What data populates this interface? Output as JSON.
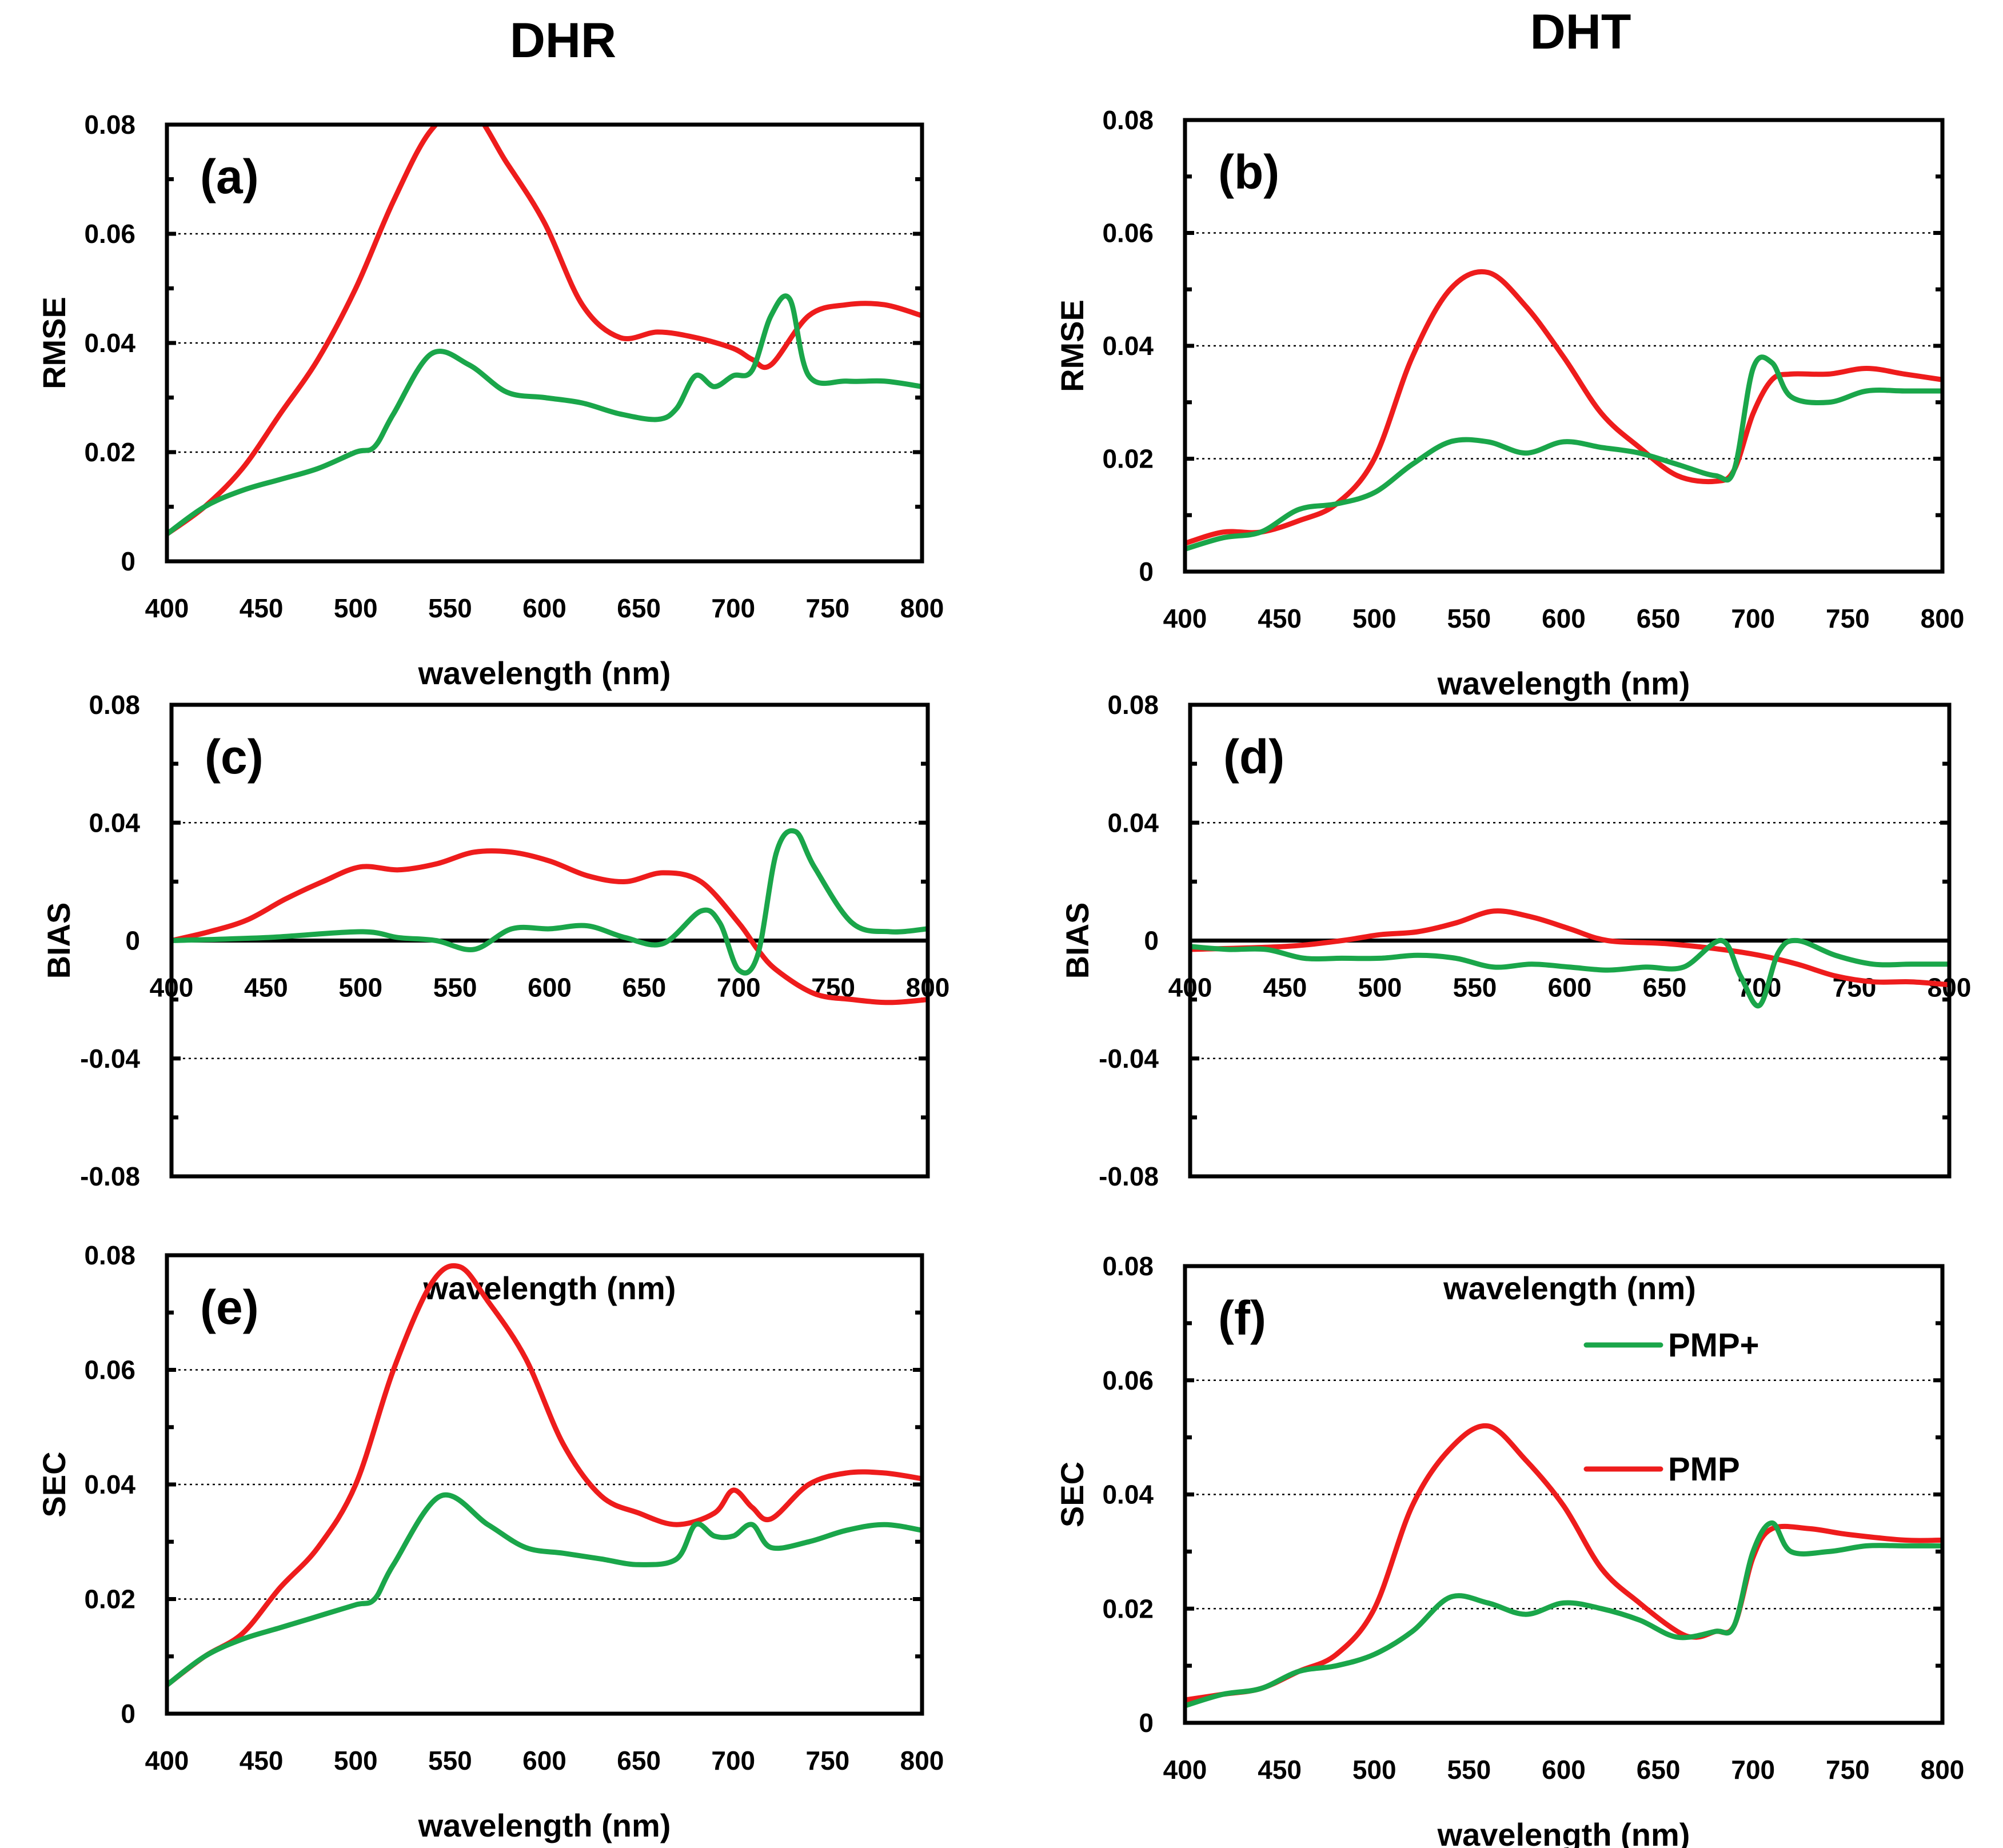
{
  "figure": {
    "column_titles": {
      "left": "DHR",
      "right": "DHT"
    },
    "legend": [
      {
        "name": "PMP+",
        "color": "#1aa64a"
      },
      {
        "name": "PMP",
        "color": "#ee1c1c"
      }
    ]
  },
  "chart_data": [
    {
      "type": "line",
      "panel": "(a)",
      "column": "DHR",
      "title": "",
      "xlabel": "wavelength  (nm)",
      "ylabel": "RMSE",
      "xlim": [
        400,
        800
      ],
      "ylim": [
        0,
        0.08
      ],
      "xticks": [
        "400",
        "450",
        "500",
        "550",
        "600",
        "650",
        "700",
        "750",
        "800"
      ],
      "yticks": [
        "0",
        "0.02",
        "0.04",
        "0.06",
        "0.08"
      ],
      "grid_y": [
        0.02,
        0.04,
        0.06
      ],
      "zero_line": false,
      "series": [
        {
          "name": "PMP",
          "x": [
            400,
            420,
            440,
            460,
            480,
            500,
            520,
            540,
            560,
            580,
            600,
            620,
            640,
            660,
            680,
            700,
            710,
            720,
            740,
            760,
            780,
            800
          ],
          "y": [
            0.005,
            0.01,
            0.017,
            0.027,
            0.037,
            0.05,
            0.066,
            0.079,
            0.083,
            0.073,
            0.062,
            0.047,
            0.041,
            0.042,
            0.041,
            0.039,
            0.037,
            0.036,
            0.045,
            0.047,
            0.047,
            0.045
          ]
        },
        {
          "name": "PMP+",
          "x": [
            400,
            420,
            440,
            460,
            480,
            500,
            510,
            520,
            540,
            560,
            580,
            600,
            620,
            640,
            660,
            670,
            680,
            690,
            700,
            710,
            720,
            730,
            740,
            760,
            780,
            800
          ],
          "y": [
            0.005,
            0.01,
            0.013,
            0.015,
            0.017,
            0.02,
            0.021,
            0.027,
            0.038,
            0.036,
            0.031,
            0.03,
            0.029,
            0.027,
            0.026,
            0.028,
            0.034,
            0.032,
            0.034,
            0.035,
            0.045,
            0.048,
            0.034,
            0.033,
            0.033,
            0.032
          ]
        }
      ]
    },
    {
      "type": "line",
      "panel": "(b)",
      "column": "DHT",
      "title": "",
      "xlabel": "wavelength  (nm)",
      "ylabel": "RMSE",
      "xlim": [
        400,
        800
      ],
      "ylim": [
        0,
        0.08
      ],
      "xticks": [
        "400",
        "450",
        "500",
        "550",
        "600",
        "650",
        "700",
        "750",
        "800"
      ],
      "yticks": [
        "0",
        "0.02",
        "0.04",
        "0.06",
        "0.08"
      ],
      "grid_y": [
        0.02,
        0.04,
        0.06
      ],
      "zero_line": false,
      "series": [
        {
          "name": "PMP",
          "x": [
            400,
            420,
            440,
            460,
            480,
            500,
            520,
            540,
            560,
            580,
            600,
            620,
            640,
            660,
            680,
            690,
            700,
            710,
            720,
            740,
            760,
            780,
            800
          ],
          "y": [
            0.005,
            0.007,
            0.007,
            0.009,
            0.012,
            0.02,
            0.038,
            0.05,
            0.053,
            0.047,
            0.038,
            0.028,
            0.022,
            0.017,
            0.016,
            0.018,
            0.028,
            0.034,
            0.035,
            0.035,
            0.036,
            0.035,
            0.034
          ]
        },
        {
          "name": "PMP+",
          "x": [
            400,
            420,
            440,
            460,
            480,
            500,
            520,
            540,
            560,
            580,
            600,
            620,
            640,
            660,
            680,
            690,
            700,
            710,
            720,
            740,
            760,
            780,
            800
          ],
          "y": [
            0.004,
            0.006,
            0.007,
            0.011,
            0.012,
            0.014,
            0.019,
            0.023,
            0.023,
            0.021,
            0.023,
            0.022,
            0.021,
            0.019,
            0.017,
            0.018,
            0.036,
            0.037,
            0.031,
            0.03,
            0.032,
            0.032,
            0.032
          ]
        }
      ]
    },
    {
      "type": "line",
      "panel": "(c)",
      "column": "DHR",
      "title": "",
      "xlabel": "wavelength  (nm)",
      "ylabel": "BIAS",
      "xlim": [
        400,
        800
      ],
      "ylim": [
        -0.08,
        0.08
      ],
      "xticks": [
        "400",
        "450",
        "500",
        "550",
        "600",
        "650",
        "700",
        "750",
        "800"
      ],
      "yticks": [
        "-0.08",
        "-0.04",
        "0",
        "0.04",
        "0.08"
      ],
      "grid_y": [
        -0.04,
        0.04
      ],
      "zero_line": true,
      "series": [
        {
          "name": "PMP",
          "x": [
            400,
            420,
            440,
            460,
            480,
            500,
            520,
            540,
            560,
            580,
            600,
            620,
            640,
            660,
            680,
            700,
            710,
            720,
            740,
            760,
            780,
            800
          ],
          "y": [
            0.0,
            0.003,
            0.007,
            0.014,
            0.02,
            0.025,
            0.024,
            0.026,
            0.03,
            0.03,
            0.027,
            0.022,
            0.02,
            0.023,
            0.02,
            0.006,
            -0.003,
            -0.01,
            -0.018,
            -0.02,
            -0.021,
            -0.02
          ]
        },
        {
          "name": "PMP+",
          "x": [
            400,
            450,
            500,
            520,
            540,
            560,
            580,
            600,
            620,
            640,
            660,
            680,
            690,
            700,
            710,
            720,
            730,
            740,
            760,
            780,
            800
          ],
          "y": [
            0.0,
            0.001,
            0.003,
            0.001,
            0.0,
            -0.003,
            0.004,
            0.004,
            0.005,
            0.001,
            -0.001,
            0.01,
            0.006,
            -0.01,
            -0.005,
            0.03,
            0.037,
            0.025,
            0.006,
            0.003,
            0.004
          ]
        }
      ]
    },
    {
      "type": "line",
      "panel": "(d)",
      "column": "DHT",
      "title": "",
      "xlabel": "wavelength  (nm)",
      "ylabel": "BIAS",
      "xlim": [
        400,
        800
      ],
      "ylim": [
        -0.08,
        0.08
      ],
      "xticks": [
        "400",
        "450",
        "500",
        "550",
        "600",
        "650",
        "700",
        "750",
        "800"
      ],
      "yticks": [
        "-0.08",
        "-0.04",
        "0",
        "0.04",
        "0.08"
      ],
      "grid_y": [
        -0.04,
        0.04
      ],
      "zero_line": true,
      "series": [
        {
          "name": "PMP",
          "x": [
            400,
            450,
            480,
            500,
            520,
            540,
            560,
            580,
            600,
            620,
            650,
            680,
            700,
            720,
            740,
            760,
            780,
            800
          ],
          "y": [
            -0.003,
            -0.002,
            0.0,
            0.002,
            0.003,
            0.006,
            0.01,
            0.008,
            0.004,
            0.0,
            -0.001,
            -0.003,
            -0.005,
            -0.008,
            -0.012,
            -0.014,
            -0.014,
            -0.015
          ]
        },
        {
          "name": "PMP+",
          "x": [
            400,
            420,
            440,
            460,
            480,
            500,
            520,
            540,
            560,
            580,
            600,
            620,
            640,
            660,
            680,
            690,
            700,
            710,
            720,
            740,
            760,
            780,
            800
          ],
          "y": [
            -0.002,
            -0.003,
            -0.003,
            -0.006,
            -0.006,
            -0.006,
            -0.005,
            -0.006,
            -0.009,
            -0.008,
            -0.009,
            -0.01,
            -0.009,
            -0.009,
            0.0,
            -0.012,
            -0.022,
            -0.004,
            0.0,
            -0.005,
            -0.008,
            -0.008,
            -0.008
          ]
        }
      ]
    },
    {
      "type": "line",
      "panel": "(e)",
      "column": "DHR",
      "title": "",
      "xlabel": "wavelength  (nm)",
      "ylabel": "SEC",
      "xlim": [
        400,
        800
      ],
      "ylim": [
        0,
        0.08
      ],
      "xticks": [
        "400",
        "450",
        "500",
        "550",
        "600",
        "650",
        "700",
        "750",
        "800"
      ],
      "yticks": [
        "0",
        "0.02",
        "0.04",
        "0.06",
        "0.08"
      ],
      "grid_y": [
        0.02,
        0.04,
        0.06
      ],
      "zero_line": false,
      "series": [
        {
          "name": "PMP",
          "x": [
            400,
            420,
            440,
            460,
            480,
            500,
            520,
            540,
            555,
            570,
            590,
            610,
            630,
            650,
            670,
            690,
            700,
            710,
            720,
            740,
            760,
            780,
            800
          ],
          "y": [
            0.005,
            0.01,
            0.014,
            0.022,
            0.029,
            0.04,
            0.06,
            0.075,
            0.078,
            0.072,
            0.062,
            0.047,
            0.038,
            0.035,
            0.033,
            0.035,
            0.039,
            0.036,
            0.034,
            0.04,
            0.042,
            0.042,
            0.041
          ]
        },
        {
          "name": "PMP+",
          "x": [
            400,
            420,
            440,
            460,
            480,
            500,
            510,
            520,
            545,
            570,
            590,
            610,
            630,
            650,
            670,
            680,
            690,
            700,
            710,
            720,
            740,
            760,
            780,
            800
          ],
          "y": [
            0.005,
            0.01,
            0.013,
            0.015,
            0.017,
            0.019,
            0.02,
            0.026,
            0.038,
            0.033,
            0.029,
            0.028,
            0.027,
            0.026,
            0.027,
            0.033,
            0.031,
            0.031,
            0.033,
            0.029,
            0.03,
            0.032,
            0.033,
            0.032
          ]
        }
      ]
    },
    {
      "type": "line",
      "panel": "(f)",
      "column": "DHT",
      "title": "",
      "xlabel": "wavelength  (nm)",
      "ylabel": "SEC",
      "xlim": [
        400,
        800
      ],
      "ylim": [
        0,
        0.08
      ],
      "xticks": [
        "400",
        "450",
        "500",
        "550",
        "600",
        "650",
        "700",
        "750",
        "800"
      ],
      "yticks": [
        "0",
        "0.02",
        "0.04",
        "0.06",
        "0.08"
      ],
      "grid_y": [
        0.02,
        0.04,
        0.06
      ],
      "zero_line": false,
      "legend_position": "upper-right",
      "series": [
        {
          "name": "PMP",
          "x": [
            400,
            420,
            440,
            460,
            480,
            500,
            520,
            540,
            560,
            580,
            600,
            620,
            640,
            660,
            670,
            680,
            690,
            700,
            710,
            730,
            750,
            780,
            800
          ],
          "y": [
            0.004,
            0.005,
            0.006,
            0.009,
            0.012,
            0.02,
            0.038,
            0.048,
            0.052,
            0.046,
            0.038,
            0.027,
            0.021,
            0.016,
            0.015,
            0.016,
            0.017,
            0.029,
            0.034,
            0.034,
            0.033,
            0.032,
            0.032
          ]
        },
        {
          "name": "PMP+",
          "x": [
            400,
            420,
            440,
            460,
            480,
            500,
            520,
            540,
            560,
            580,
            600,
            620,
            640,
            660,
            680,
            690,
            700,
            710,
            720,
            740,
            760,
            780,
            800
          ],
          "y": [
            0.003,
            0.005,
            0.006,
            0.009,
            0.01,
            0.012,
            0.016,
            0.022,
            0.021,
            0.019,
            0.021,
            0.02,
            0.018,
            0.015,
            0.016,
            0.017,
            0.03,
            0.035,
            0.03,
            0.03,
            0.031,
            0.031,
            0.031
          ]
        }
      ]
    }
  ]
}
